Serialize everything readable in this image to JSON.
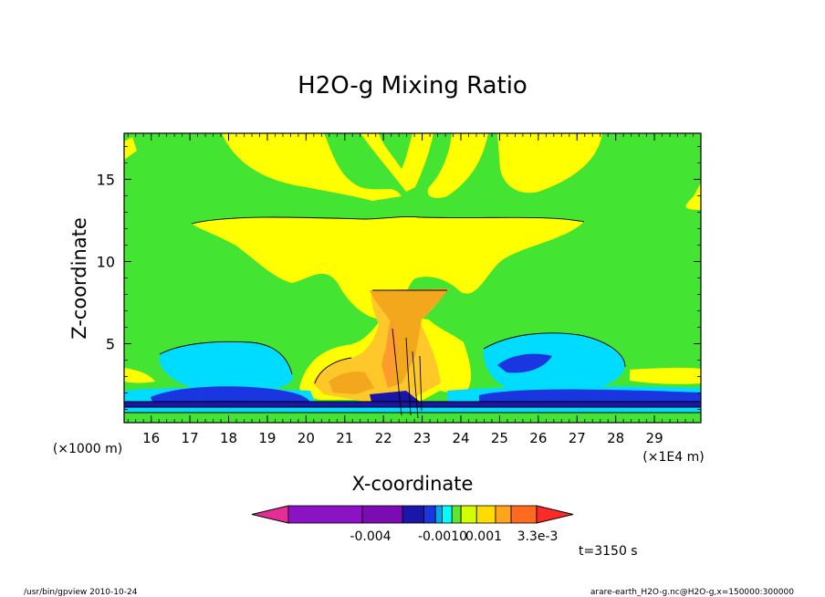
{
  "chart_data": {
    "type": "heatmap",
    "title": "H2O-g Mixing Ratio",
    "xlabel": "X-coordinate",
    "ylabel": "Z-coordinate",
    "x_unit_note": "(×1E4 m)",
    "y_unit_note": "(×1000 m)",
    "xlim": [
      15.3,
      30.2
    ],
    "ylim": [
      0.2,
      17.8
    ],
    "x_ticks": [
      16,
      17,
      18,
      19,
      20,
      21,
      22,
      23,
      24,
      25,
      26,
      27,
      28,
      29
    ],
    "y_ticks": [
      5,
      10,
      15
    ],
    "grid": false,
    "colorbar": {
      "position": "bottom",
      "colors": [
        "#e62c97",
        "#8c12c6",
        "#7b0cb4",
        "#1a16a8",
        "#1a36e0",
        "#00a7ee",
        "#00ffff",
        "#60e632",
        "#d2ff00",
        "#ffdc00",
        "#ffa51b",
        "#ff6a1e",
        "#ff2a26"
      ],
      "tick_labels": [
        "-0.004",
        "-0.0010",
        "0.001",
        "3.3e-3"
      ]
    },
    "regions": [
      {
        "level": "green",
        "color": "#44e432",
        "description": "background field"
      },
      {
        "level": "yellow",
        "color": "#ffff00"
      },
      {
        "level": "light-orange",
        "color": "#ffc82a"
      },
      {
        "level": "orange",
        "color": "#f2a71c"
      },
      {
        "level": "cyan",
        "color": "#00dcff"
      },
      {
        "level": "blue",
        "color": "#1a36e0"
      },
      {
        "level": "dark-blue",
        "color": "#1a16a8"
      }
    ],
    "time_label": "t=3150 s"
  },
  "footer": {
    "left": "/usr/bin/gpview  2010-10-24",
    "right": "arare-earth_H2O-g.nc@H2O-g,x=150000:300000"
  }
}
